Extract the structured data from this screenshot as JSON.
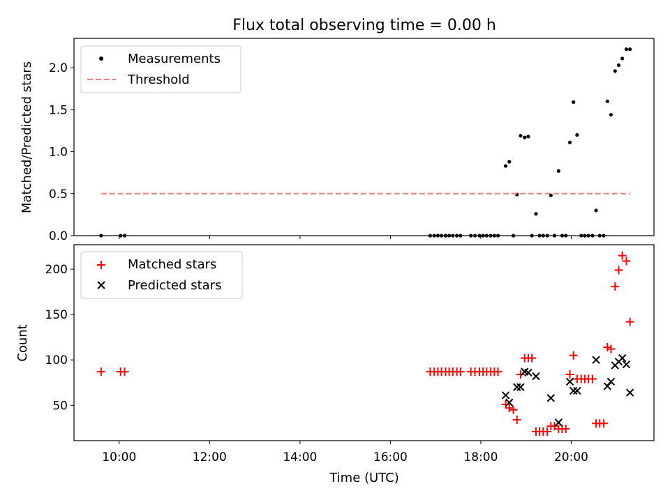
{
  "title": "Flux total observing time = 0.00 h",
  "chart_data": [
    {
      "type": "scatter",
      "ylabel": "Matched/Predicted stars",
      "xlim": [
        9.0,
        21.83
      ],
      "ylim": [
        0,
        2.35
      ],
      "yticks": [
        0.0,
        0.5,
        1.0,
        1.5,
        2.0
      ],
      "ytick_labels": [
        "0.0",
        "0.5",
        "1.0",
        "1.5",
        "2.0"
      ],
      "legend_position": "top-left",
      "legend": [
        "Measurements",
        "Threshold"
      ],
      "series": [
        {
          "name": "Measurements",
          "marker": "dot",
          "color": "#000000",
          "points": [
            [
              9.6,
              0
            ],
            [
              10.03,
              0
            ],
            [
              10.12,
              0
            ],
            [
              16.88,
              0
            ],
            [
              16.97,
              0
            ],
            [
              17.05,
              0
            ],
            [
              17.13,
              0
            ],
            [
              17.22,
              0
            ],
            [
              17.3,
              0
            ],
            [
              17.38,
              0
            ],
            [
              17.47,
              0
            ],
            [
              17.55,
              0
            ],
            [
              17.78,
              0
            ],
            [
              17.87,
              0
            ],
            [
              17.97,
              0
            ],
            [
              18.05,
              0
            ],
            [
              18.13,
              0
            ],
            [
              18.22,
              0
            ],
            [
              18.3,
              0
            ],
            [
              18.38,
              0
            ],
            [
              18.55,
              0.83
            ],
            [
              18.63,
              0.88
            ],
            [
              18.72,
              0
            ],
            [
              18.8,
              0.49
            ],
            [
              18.88,
              1.19
            ],
            [
              18.97,
              1.17
            ],
            [
              19.05,
              1.18
            ],
            [
              19.13,
              0
            ],
            [
              19.22,
              0.26
            ],
            [
              19.3,
              0
            ],
            [
              19.38,
              0
            ],
            [
              19.47,
              0
            ],
            [
              19.55,
              0.48
            ],
            [
              19.63,
              0
            ],
            [
              19.72,
              0.77
            ],
            [
              19.8,
              0
            ],
            [
              19.88,
              0
            ],
            [
              19.97,
              1.11
            ],
            [
              20.05,
              1.59
            ],
            [
              20.13,
              1.2
            ],
            [
              20.22,
              0
            ],
            [
              20.3,
              0
            ],
            [
              20.38,
              0
            ],
            [
              20.47,
              0
            ],
            [
              20.55,
              0.3
            ],
            [
              20.63,
              0
            ],
            [
              20.72,
              0
            ],
            [
              20.8,
              1.6
            ],
            [
              20.88,
              1.44
            ],
            [
              20.97,
              1.96
            ],
            [
              21.05,
              2.03
            ],
            [
              21.13,
              2.11
            ],
            [
              21.22,
              2.22
            ],
            [
              21.3,
              2.22
            ]
          ]
        },
        {
          "name": "Threshold",
          "style": "dashed",
          "color": "#f08080",
          "x": [
            9.6,
            21.3
          ],
          "y": [
            0.5,
            0.5
          ]
        }
      ]
    },
    {
      "type": "scatter",
      "xlabel": "Time (UTC)",
      "ylabel": "Count",
      "xlim": [
        9.0,
        21.83
      ],
      "ylim": [
        11,
        227
      ],
      "xticks": [
        10,
        12,
        14,
        16,
        18,
        20
      ],
      "xtick_labels": [
        "10:00",
        "12:00",
        "14:00",
        "16:00",
        "18:00",
        "20:00"
      ],
      "yticks": [
        50,
        100,
        150,
        200
      ],
      "ytick_labels": [
        "50",
        "100",
        "150",
        "200"
      ],
      "legend_position": "top-left",
      "legend": [
        "Matched stars",
        "Predicted stars"
      ],
      "series": [
        {
          "name": "Matched stars",
          "marker": "plus",
          "color": "#ff0000",
          "points": [
            [
              9.6,
              87
            ],
            [
              10.03,
              87
            ],
            [
              10.12,
              87
            ],
            [
              16.88,
              87
            ],
            [
              16.97,
              87
            ],
            [
              17.05,
              87
            ],
            [
              17.13,
              87
            ],
            [
              17.22,
              87
            ],
            [
              17.3,
              87
            ],
            [
              17.38,
              87
            ],
            [
              17.47,
              87
            ],
            [
              17.55,
              87
            ],
            [
              17.78,
              87
            ],
            [
              17.87,
              87
            ],
            [
              17.97,
              87
            ],
            [
              18.05,
              87
            ],
            [
              18.13,
              87
            ],
            [
              18.22,
              87
            ],
            [
              18.3,
              87
            ],
            [
              18.38,
              87
            ],
            [
              18.55,
              51
            ],
            [
              18.63,
              47
            ],
            [
              18.72,
              45
            ],
            [
              18.8,
              34
            ],
            [
              18.88,
              84
            ],
            [
              18.97,
              102
            ],
            [
              19.05,
              102
            ],
            [
              19.13,
              102
            ],
            [
              19.22,
              21
            ],
            [
              19.3,
              21
            ],
            [
              19.38,
              21
            ],
            [
              19.47,
              21
            ],
            [
              19.55,
              27
            ],
            [
              19.63,
              27
            ],
            [
              19.72,
              24
            ],
            [
              19.8,
              24
            ],
            [
              19.88,
              24
            ],
            [
              19.97,
              84
            ],
            [
              20.05,
              105
            ],
            [
              20.13,
              79
            ],
            [
              20.22,
              79
            ],
            [
              20.3,
              79
            ],
            [
              20.38,
              79
            ],
            [
              20.47,
              79
            ],
            [
              20.55,
              30
            ],
            [
              20.63,
              30
            ],
            [
              20.72,
              30
            ],
            [
              20.8,
              114
            ],
            [
              20.88,
              112
            ],
            [
              20.97,
              181
            ],
            [
              21.05,
              199
            ],
            [
              21.13,
              215
            ],
            [
              21.22,
              209
            ],
            [
              21.3,
              142
            ]
          ]
        },
        {
          "name": "Predicted stars",
          "marker": "x",
          "color": "#000000",
          "points": [
            [
              18.55,
              61
            ],
            [
              18.63,
              53
            ],
            [
              18.8,
              70
            ],
            [
              18.88,
              70
            ],
            [
              18.97,
              87
            ],
            [
              19.05,
              86
            ],
            [
              19.22,
              82
            ],
            [
              19.55,
              58
            ],
            [
              19.72,
              31
            ],
            [
              19.97,
              76
            ],
            [
              20.05,
              66
            ],
            [
              20.13,
              66
            ],
            [
              20.55,
              100
            ],
            [
              20.8,
              71
            ],
            [
              20.88,
              76
            ],
            [
              20.97,
              94
            ],
            [
              21.05,
              98
            ],
            [
              21.13,
              102
            ],
            [
              21.22,
              95
            ],
            [
              21.3,
              64
            ]
          ]
        }
      ]
    }
  ]
}
